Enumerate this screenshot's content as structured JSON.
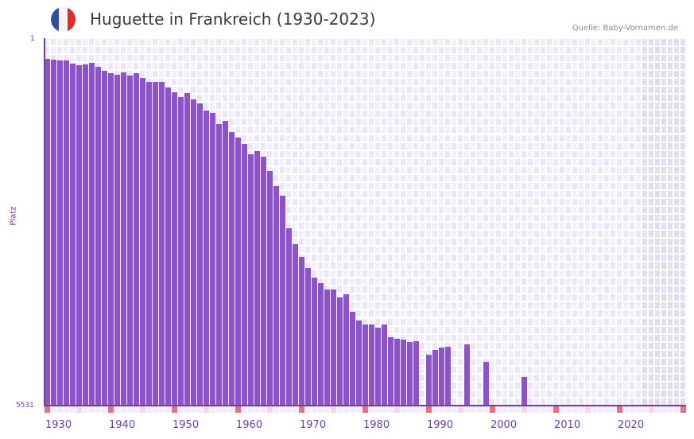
{
  "header": {
    "flag_icon": "france-flag-icon",
    "flag_colors": [
      "#2f4fa5",
      "#f4f4f8",
      "#e52a2a"
    ],
    "title": "Huguette in Frankreich (1930-2023)",
    "source": "Quelle: Baby-Vornamen.de"
  },
  "colors": {
    "bar": "#8b55c6",
    "axis": "#6a3fa8",
    "grid_a": "#f2effb",
    "grid_b": "#ebe6f7",
    "future_a": "#e5e1f0",
    "future_b": "#e0dbed",
    "marker_decade": "#e5737c",
    "marker_half": "#f5d9e1",
    "marker_other": "#f0ecfa"
  },
  "chart_data": {
    "type": "bar",
    "title": "Huguette in Frankreich (1930-2023)",
    "xlabel": "",
    "ylabel": "Platz",
    "y_inverted": true,
    "ylim": [
      1,
      5531
    ],
    "y_ticks": [
      "1",
      "5531"
    ],
    "x_tick_labels": [
      "1930",
      "1940",
      "1950",
      "1960",
      "1970",
      "1980",
      "1990",
      "2000",
      "2010",
      "2020"
    ],
    "x_range": [
      1930,
      2030
    ],
    "shaded_future_from": 2024,
    "grid": true,
    "legend": null,
    "years": [
      1930,
      1931,
      1932,
      1933,
      1934,
      1935,
      1936,
      1937,
      1938,
      1939,
      1940,
      1941,
      1942,
      1943,
      1944,
      1945,
      1946,
      1947,
      1948,
      1949,
      1950,
      1951,
      1952,
      1953,
      1954,
      1955,
      1956,
      1957,
      1958,
      1959,
      1960,
      1961,
      1962,
      1963,
      1964,
      1965,
      1966,
      1967,
      1968,
      1969,
      1970,
      1971,
      1972,
      1973,
      1974,
      1975,
      1976,
      1977,
      1978,
      1979,
      1980,
      1981,
      1982,
      1983,
      1984,
      1985,
      1986,
      1987,
      1988,
      1989,
      1990,
      1991,
      1992,
      1993,
      1994,
      1995,
      1996,
      1997,
      1998,
      1999,
      2000,
      2001,
      2002,
      2003,
      2004,
      2005,
      2006,
      2007,
      2008,
      2009,
      2010,
      2011,
      2012,
      2013,
      2014,
      2015,
      2016,
      2017,
      2018,
      2019,
      2020,
      2021,
      2022,
      2023
    ],
    "ranks": [
      312,
      324,
      336,
      336,
      384,
      408,
      396,
      372,
      432,
      492,
      528,
      552,
      516,
      564,
      528,
      600,
      660,
      660,
      660,
      743,
      815,
      887,
      827,
      923,
      983,
      1091,
      1127,
      1294,
      1247,
      1414,
      1498,
      1594,
      1750,
      1702,
      1786,
      2001,
      2229,
      2373,
      2864,
      3103,
      3295,
      3462,
      3606,
      3689,
      3785,
      3785,
      3905,
      3857,
      4120,
      4252,
      4312,
      4312,
      4360,
      4312,
      4504,
      4528,
      4540,
      4576,
      4564,
      null,
      4768,
      4696,
      4660,
      4648,
      null,
      null,
      4612,
      null,
      null,
      4876,
      null,
      null,
      null,
      null,
      null,
      5104,
      null,
      null,
      null,
      null,
      null,
      null,
      null,
      null,
      null,
      null,
      null,
      null,
      null,
      null,
      null,
      null,
      null,
      null
    ]
  },
  "axis": {
    "y_top_label": "1",
    "y_bottom_label": "5531",
    "y_title": "Platz"
  }
}
